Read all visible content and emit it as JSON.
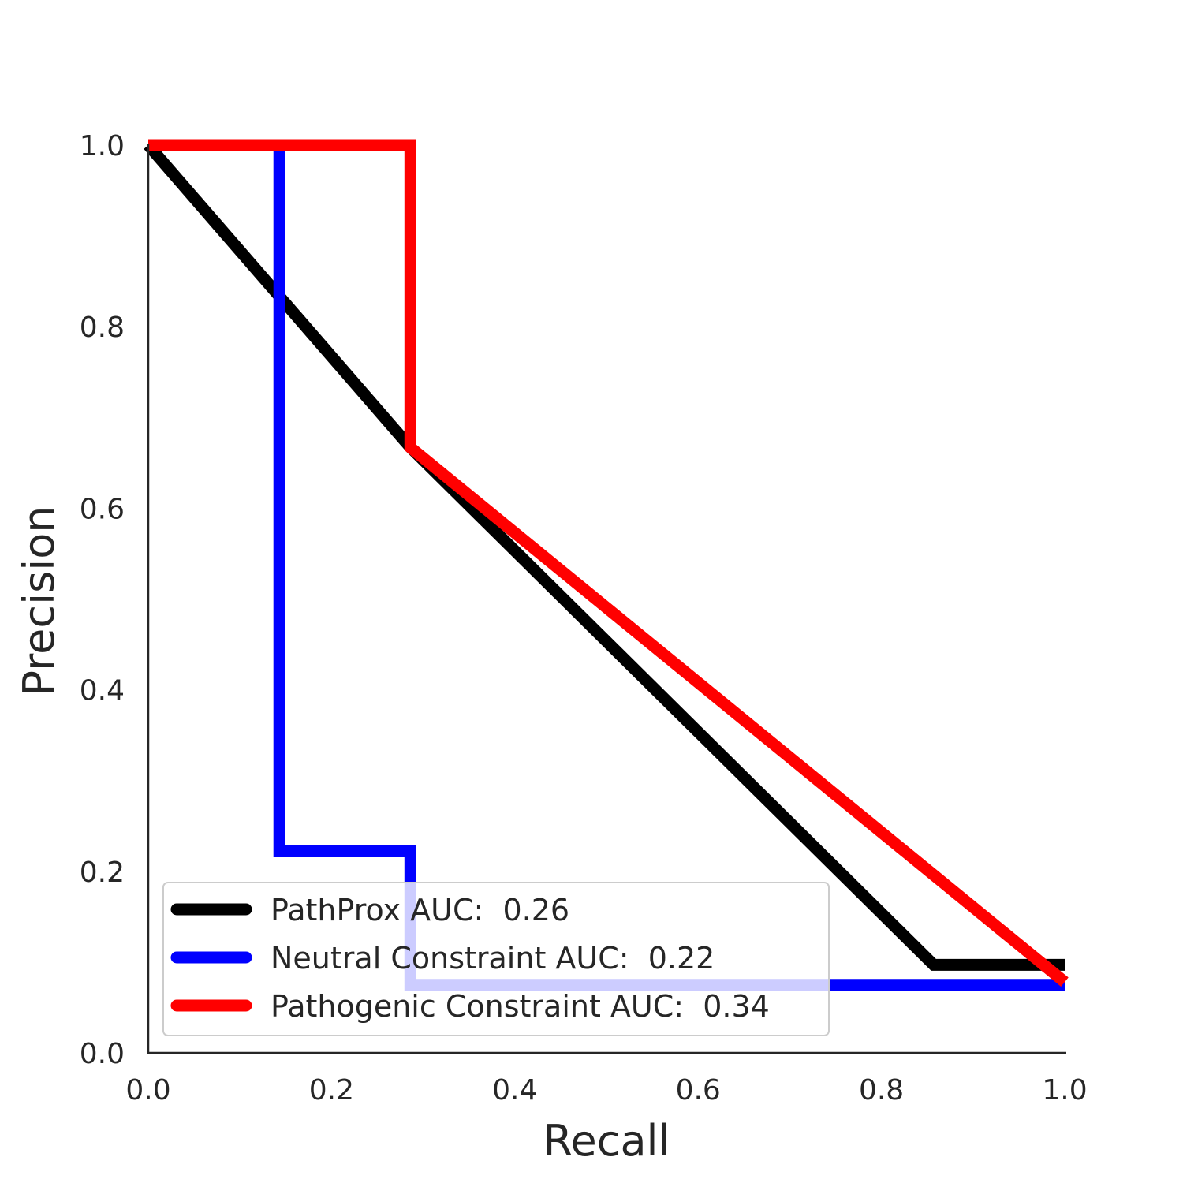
{
  "chart_data": {
    "type": "line",
    "xlabel": "Recall",
    "ylabel": "Precision",
    "xlim": [
      0,
      1
    ],
    "ylim": [
      0,
      1
    ],
    "xticks": [
      "0.0",
      "0.2",
      "0.4",
      "0.6",
      "0.8",
      "1.0"
    ],
    "yticks": [
      "0.0",
      "0.2",
      "0.4",
      "0.6",
      "0.8",
      "1.0"
    ],
    "grid": false,
    "legend_position": "lower-left",
    "series": [
      {
        "name": "PathProx AUC:  0.26",
        "color": "#000000",
        "x": [
          0.0,
          0.286,
          0.857,
          1.0
        ],
        "y": [
          1.0,
          0.667,
          0.097,
          0.097
        ]
      },
      {
        "name": "Neutral Constraint AUC:  0.22",
        "color": "#0000ff",
        "x": [
          0.143,
          0.143,
          0.143,
          0.286,
          0.286,
          0.286,
          1.0
        ],
        "y": [
          1.0,
          0.833,
          0.222,
          0.222,
          0.222,
          0.075,
          0.075
        ]
      },
      {
        "name": "Pathogenic Constraint AUC:  0.34",
        "color": "#ff0000",
        "x": [
          0.0,
          0.286,
          0.286,
          0.286,
          1.0
        ],
        "y": [
          1.0,
          1.0,
          0.667,
          0.667,
          0.078
        ]
      }
    ]
  }
}
